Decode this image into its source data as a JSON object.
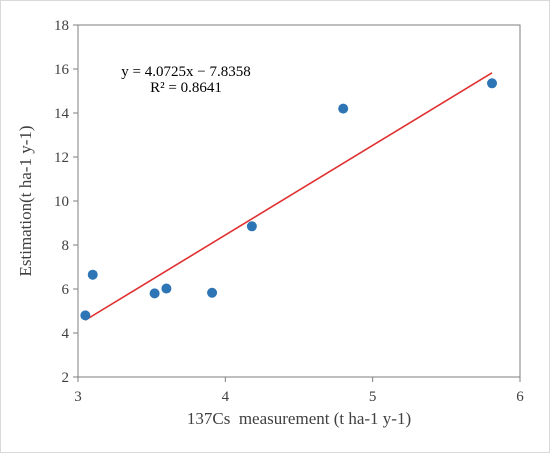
{
  "chart_data": {
    "type": "scatter",
    "title": "",
    "xlabel": "137Cs  measurement (t ha-1 y-1)",
    "ylabel": "Estimation(t ha-1 y-1)",
    "xlim": [
      3,
      6
    ],
    "ylim": [
      2,
      18
    ],
    "xticks": [
      3,
      4,
      5,
      6
    ],
    "yticks": [
      2,
      4,
      6,
      8,
      10,
      12,
      14,
      16,
      18
    ],
    "grid": false,
    "legend": "none",
    "points": [
      {
        "x": 3.05,
        "y": 4.8
      },
      {
        "x": 3.1,
        "y": 6.65
      },
      {
        "x": 3.52,
        "y": 5.8
      },
      {
        "x": 3.6,
        "y": 6.02
      },
      {
        "x": 3.91,
        "y": 5.83
      },
      {
        "x": 4.18,
        "y": 8.85
      },
      {
        "x": 4.8,
        "y": 14.2
      },
      {
        "x": 5.81,
        "y": 15.35
      }
    ],
    "trendline": {
      "slope": 4.0725,
      "intercept": -7.8358,
      "x_start": 3.05,
      "x_end": 5.81,
      "equation_label": "y = 4.0725x − 7.8358",
      "r2_label": "R² = 0.8641"
    },
    "colors": {
      "points": "#2e75b6",
      "trendline": "#e03030",
      "axis": "#7f7f7f"
    }
  }
}
